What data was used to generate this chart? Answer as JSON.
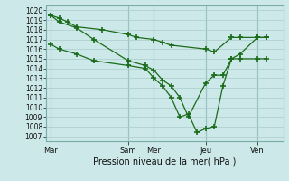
{
  "title": "Pression niveau de la mer( hPa )",
  "background_color": "#cce8e8",
  "grid_color": "#aacccc",
  "line_color": "#1a6b1a",
  "ylim": [
    1006.5,
    1020.5
  ],
  "xtick_labels": [
    "Mar",
    "Sam",
    "Mer",
    "Jeu",
    "Ven"
  ],
  "xtick_positions": [
    0,
    9,
    12,
    18,
    24
  ],
  "xmax": 27,
  "line1_x": [
    0,
    1,
    2,
    3,
    6,
    9,
    10,
    12,
    13,
    14,
    18,
    19,
    21,
    22,
    24,
    25
  ],
  "line1_y": [
    1019.5,
    1019.2,
    1018.8,
    1018.3,
    1018.0,
    1017.5,
    1017.2,
    1017.0,
    1016.7,
    1016.4,
    1016.0,
    1015.7,
    1017.2,
    1017.2,
    1017.2,
    1017.2
  ],
  "line2_x": [
    0,
    1,
    3,
    5,
    9,
    11,
    12,
    13,
    14,
    15,
    16,
    18,
    19,
    20,
    21,
    22,
    24,
    25
  ],
  "line2_y": [
    1019.5,
    1018.8,
    1018.2,
    1017.0,
    1014.8,
    1014.3,
    1013.8,
    1012.8,
    1012.2,
    1011.0,
    1009.0,
    1012.5,
    1013.3,
    1013.3,
    1015.0,
    1015.5,
    1017.2,
    1017.2
  ],
  "line3_x": [
    0,
    1,
    3,
    5,
    9,
    11,
    12,
    13,
    14,
    15,
    16,
    17,
    18,
    19,
    20,
    21,
    22,
    24,
    25
  ],
  "line3_y": [
    1016.5,
    1016.0,
    1015.5,
    1014.8,
    1014.3,
    1014.0,
    1013.0,
    1012.2,
    1011.0,
    1009.0,
    1009.3,
    1007.4,
    1007.8,
    1008.0,
    1012.2,
    1015.0,
    1015.0,
    1015.0,
    1015.0
  ]
}
